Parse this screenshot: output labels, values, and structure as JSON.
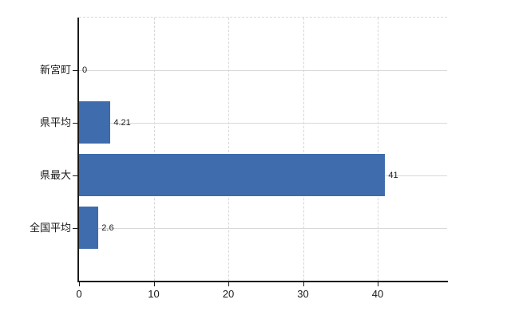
{
  "chart_data": {
    "type": "bar",
    "orientation": "horizontal",
    "title": "",
    "xlabel": "",
    "ylabel": "",
    "categories": [
      "新宮町",
      "県平均",
      "県最大",
      "全国平均"
    ],
    "values": [
      0,
      4.21,
      41,
      2.6
    ],
    "value_labels": [
      "0",
      "4.21",
      "41",
      "2.6"
    ],
    "xticks": [
      0,
      10,
      20,
      30,
      40
    ],
    "xlim": [
      0,
      49.3
    ],
    "grid": "on",
    "legend": "none",
    "colors": {
      "bar": "#3e6cad",
      "grid": "#d9d9d9",
      "grid_dashed": "#d6d6d6",
      "axis": "#1a1a1a",
      "text": "#1a1a1a",
      "background": "#ffffff"
    }
  }
}
